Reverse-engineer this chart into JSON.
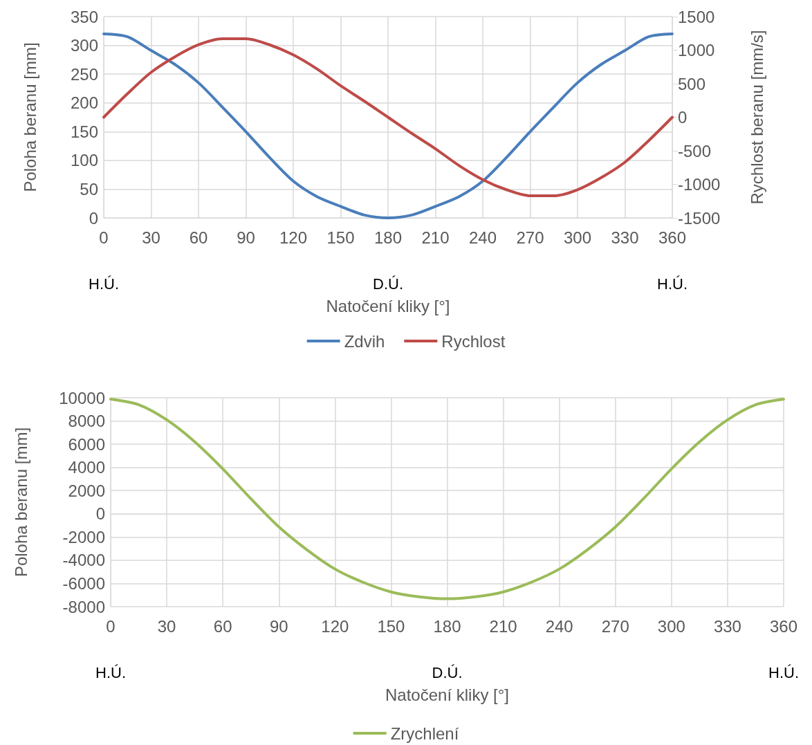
{
  "chart_data": [
    {
      "type": "line",
      "xlabel": "Natočení kliky [°]",
      "ylabel": "Poloha beranu [mm]",
      "y2label": "Rychlost beranu [mm/s]",
      "x": [
        0,
        15,
        30,
        45,
        60,
        75,
        90,
        105,
        120,
        135,
        150,
        165,
        180,
        195,
        210,
        225,
        240,
        255,
        270,
        285,
        300,
        315,
        330,
        345,
        360
      ],
      "series": [
        {
          "name": "Zdvih",
          "color": "#4a7ebb",
          "values": [
            320,
            315,
            291,
            267,
            235,
            193,
            150,
            105,
            64,
            37,
            20,
            5,
            0,
            5,
            20,
            37,
            64,
            105,
            150,
            193,
            235,
            267,
            291,
            315,
            320
          ]
        },
        {
          "name": "Rychlost",
          "color": "#be4b48",
          "axis": "y2",
          "values": [
            0,
            350,
            670,
            900,
            1080,
            1170,
            1170,
            1080,
            930,
            720,
            470,
            240,
            0,
            -240,
            -470,
            -720,
            -930,
            -1080,
            -1170,
            -1170,
            -1080,
            -900,
            -670,
            -350,
            0
          ]
        }
      ],
      "xlim": [
        0,
        360
      ],
      "xticks": [
        0,
        30,
        60,
        90,
        120,
        150,
        180,
        210,
        240,
        270,
        300,
        330,
        360
      ],
      "ylim": [
        0,
        350
      ],
      "yticks": [
        0,
        50,
        100,
        150,
        200,
        250,
        300,
        350
      ],
      "y2lim": [
        -1500,
        1500
      ],
      "y2ticks": [
        -1500,
        -1000,
        -500,
        0,
        500,
        1000,
        1500
      ],
      "annotations": [
        "H.Ú.",
        "D.Ú.",
        "H.Ú."
      ],
      "grid": true,
      "legend": "bottom",
      "marker": "none",
      "line_style": "solid"
    },
    {
      "type": "line",
      "xlabel": "Natočení kliky [°]",
      "ylabel": "Poloha beranu [mm]",
      "x": [
        0,
        15,
        30,
        45,
        60,
        75,
        90,
        105,
        120,
        135,
        150,
        165,
        180,
        195,
        210,
        225,
        240,
        255,
        270,
        285,
        300,
        315,
        330,
        345,
        360
      ],
      "series": [
        {
          "name": "Zrychlení",
          "color": "#9bbb59",
          "values": [
            9880,
            9400,
            8100,
            6200,
            3870,
            1300,
            -1130,
            -3100,
            -4760,
            -5900,
            -6730,
            -7150,
            -7320,
            -7150,
            -6730,
            -5900,
            -4760,
            -3100,
            -1130,
            1300,
            3870,
            6200,
            8100,
            9400,
            9880
          ]
        }
      ],
      "xlim": [
        0,
        360
      ],
      "xticks": [
        0,
        30,
        60,
        90,
        120,
        150,
        180,
        210,
        240,
        270,
        300,
        330,
        360
      ],
      "ylim": [
        -8000,
        10000
      ],
      "yticks": [
        -8000,
        -6000,
        -4000,
        -2000,
        0,
        2000,
        4000,
        6000,
        8000,
        10000
      ],
      "annotations": [
        "H.Ú.",
        "D.Ú.",
        "H.Ú."
      ],
      "grid": true,
      "legend": "bottom",
      "marker": "none",
      "line_style": "solid"
    }
  ]
}
